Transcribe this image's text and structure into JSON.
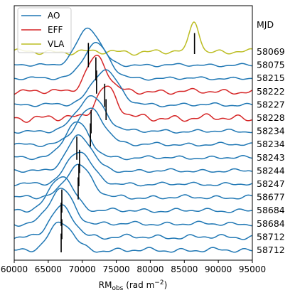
{
  "chart_data": {
    "type": "line",
    "xlabel_main": "RM",
    "xlabel_sub": "obs",
    "xlabel_unit": " (rad m",
    "xlabel_exp": "−2",
    "xlabel_close": ")",
    "xlim": [
      60000,
      95000
    ],
    "xticks": [
      "60000",
      "65000",
      "70000",
      "75000",
      "80000",
      "85000",
      "90000",
      "95000"
    ],
    "xtick_values": [
      60000,
      65000,
      70000,
      75000,
      80000,
      85000,
      90000,
      95000
    ],
    "right_axis_title": "MJD",
    "legend": [
      {
        "name": "AO",
        "color": "#1f77b4"
      },
      {
        "name": "EFF",
        "color": "#d62728"
      },
      {
        "name": "VLA",
        "color": "#bcbd22"
      }
    ],
    "series": [
      {
        "mjd": "58069",
        "telescope": "VLA",
        "peak_rm": 86500,
        "peak_height": 0.85,
        "peak_width": 700,
        "noise": 0.09
      },
      {
        "mjd": "58075",
        "telescope": "AO",
        "peak_rm": 70900,
        "peak_height": 1.0,
        "peak_width": 1700,
        "noise": 0.05
      },
      {
        "mjd": "58215",
        "telescope": "AO",
        "peak_rm": 72000,
        "peak_height": 0.95,
        "peak_width": 1800,
        "noise": 0.05
      },
      {
        "mjd": "58222",
        "telescope": "EFF",
        "peak_rm": 72100,
        "peak_height": 0.95,
        "peak_width": 1500,
        "noise": 0.09
      },
      {
        "mjd": "58227",
        "telescope": "AO",
        "peak_rm": 73300,
        "peak_height": 0.95,
        "peak_width": 1900,
        "noise": 0.06
      },
      {
        "mjd": "58228",
        "telescope": "EFF",
        "peak_rm": 73500,
        "peak_height": 0.85,
        "peak_width": 1500,
        "noise": 0.12
      },
      {
        "mjd": "58234",
        "telescope": "AO",
        "peak_rm": 71300,
        "peak_height": 0.95,
        "peak_width": 2000,
        "noise": 0.06
      },
      {
        "mjd": "58234",
        "telescope": "AO",
        "peak_rm": 71200,
        "peak_height": 0.95,
        "peak_width": 2000,
        "noise": 0.06
      },
      {
        "mjd": "58243",
        "telescope": "AO",
        "peak_rm": 69200,
        "peak_height": 0.95,
        "peak_width": 1800,
        "noise": 0.06
      },
      {
        "mjd": "58244",
        "telescope": "AO",
        "peak_rm": 69600,
        "peak_height": 0.95,
        "peak_width": 1800,
        "noise": 0.06
      },
      {
        "mjd": "58247",
        "telescope": "AO",
        "peak_rm": 69500,
        "peak_height": 0.9,
        "peak_width": 1800,
        "noise": 0.06
      },
      {
        "mjd": "58677",
        "telescope": "AO",
        "peak_rm": 69400,
        "peak_height": 0.9,
        "peak_width": 1800,
        "noise": 0.07
      },
      {
        "mjd": "58684",
        "telescope": "AO",
        "peak_rm": 67000,
        "peak_height": 0.95,
        "peak_width": 1700,
        "noise": 0.07
      },
      {
        "mjd": "58684",
        "telescope": "AO",
        "peak_rm": 66900,
        "peak_height": 0.95,
        "peak_width": 1700,
        "noise": 0.07
      },
      {
        "mjd": "58712",
        "telescope": "AO",
        "peak_rm": 67000,
        "peak_height": 0.8,
        "peak_width": 1700,
        "noise": 0.08
      },
      {
        "mjd": "58712",
        "telescope": "AO",
        "peak_rm": 66900,
        "peak_height": 0.75,
        "peak_width": 1700,
        "noise": 0.08
      }
    ]
  }
}
